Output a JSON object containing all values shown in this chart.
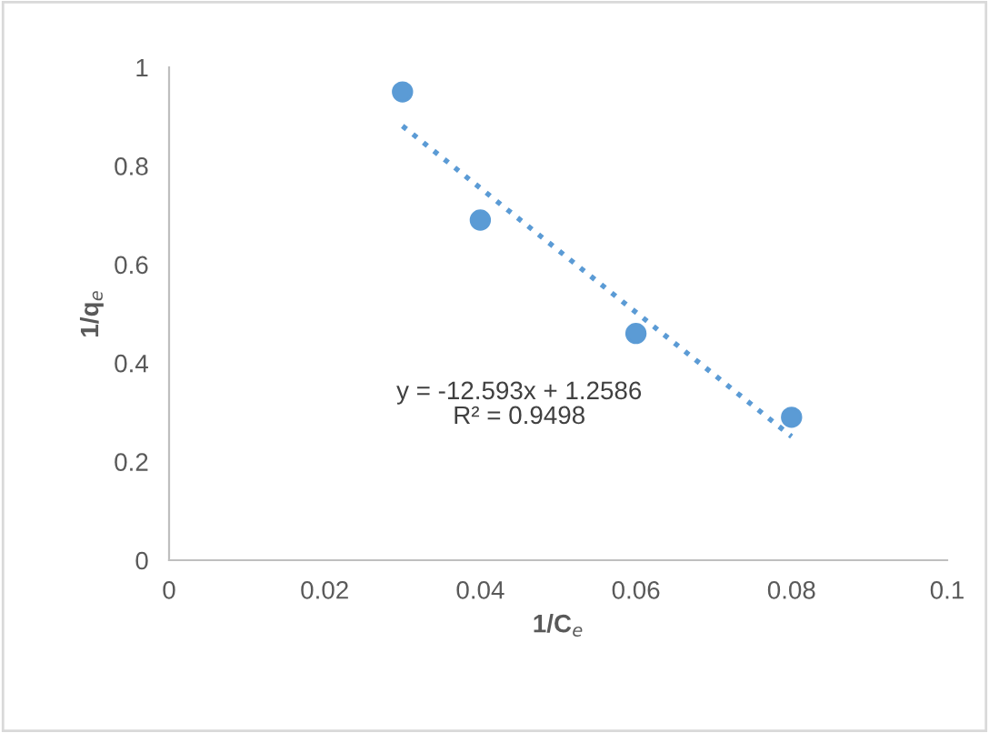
{
  "chart_data": {
    "type": "scatter",
    "xlabel": "1/C$_{e}$",
    "ylabel": "1/q$_{e}$",
    "series": [
      {
        "color": "#5b9bd5",
        "marker": "circle",
        "x": [
          0.03,
          0.04,
          0.06,
          0.08
        ],
        "values": [
          0.95,
          0.69,
          0.46,
          0.29
        ]
      },
      {
        "type": "line",
        "color": "#5b9bd5",
        "marker": "none",
        "line_style": "dotted",
        "x": [
          0.03,
          0.08
        ],
        "values": [
          0.881,
          0.251
        ]
      }
    ],
    "xlim": [
      0,
      0.1
    ],
    "xticks": [
      0,
      0.02,
      0.04,
      0.06,
      0.08,
      0.1
    ],
    "ylim": [
      0,
      1
    ],
    "yticks": [
      0,
      0.2,
      0.4,
      0.6,
      0.8,
      1
    ],
    "grid": false,
    "legend": false,
    "annotations": [
      "y = -12.593x + 1.2586",
      "R² = 0.9498"
    ]
  }
}
